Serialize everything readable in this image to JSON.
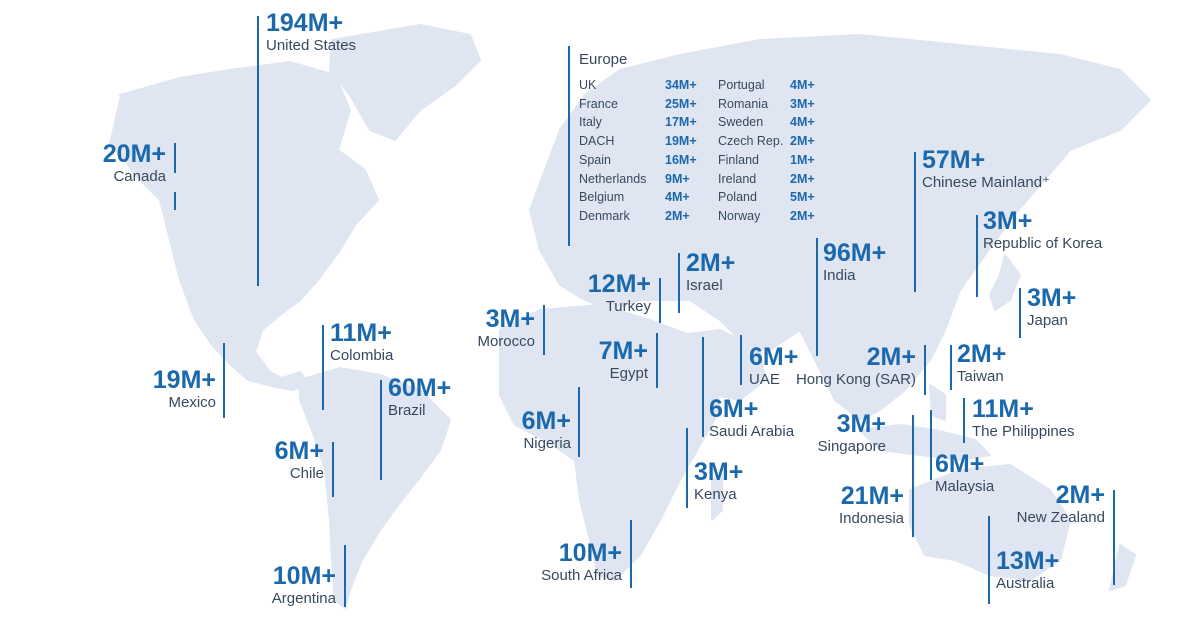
{
  "colors": {
    "accent": "#1b68ad",
    "land": "#dfe6f1",
    "text": "#37495f"
  },
  "europe": {
    "title": "Europe",
    "left_column": [
      {
        "name": "UK",
        "value": "34M+"
      },
      {
        "name": "France",
        "value": "25M+"
      },
      {
        "name": "Italy",
        "value": "17M+"
      },
      {
        "name": "DACH",
        "value": "19M+"
      },
      {
        "name": "Spain",
        "value": "16M+"
      },
      {
        "name": "Netherlands",
        "value": "9M+"
      },
      {
        "name": "Belgium",
        "value": "4M+"
      },
      {
        "name": "Denmark",
        "value": "2M+"
      }
    ],
    "right_column": [
      {
        "name": "Portugal",
        "value": "4M+"
      },
      {
        "name": "Romania",
        "value": "3M+"
      },
      {
        "name": "Sweden",
        "value": "4M+"
      },
      {
        "name": "Czech Rep.",
        "value": "2M+"
      },
      {
        "name": "Finland",
        "value": "1M+"
      },
      {
        "name": "Ireland",
        "value": "2M+"
      },
      {
        "name": "Poland",
        "value": "5M+"
      },
      {
        "name": "Norway",
        "value": "2M+"
      }
    ]
  },
  "regions": {
    "united_states": {
      "value": "194M+",
      "label": "United States"
    },
    "canada": {
      "value": "20M+",
      "label": "Canada"
    },
    "mexico": {
      "value": "19M+",
      "label": "Mexico"
    },
    "colombia": {
      "value": "11M+",
      "label": "Colombia"
    },
    "brazil": {
      "value": "60M+",
      "label": "Brazil"
    },
    "chile": {
      "value": "6M+",
      "label": "Chile"
    },
    "argentina": {
      "value": "10M+",
      "label": "Argentina"
    },
    "morocco": {
      "value": "3M+",
      "label": "Morocco"
    },
    "turkey": {
      "value": "12M+",
      "label": "Turkey"
    },
    "israel": {
      "value": "2M+",
      "label": "Israel"
    },
    "egypt": {
      "value": "7M+",
      "label": "Egypt"
    },
    "nigeria": {
      "value": "6M+",
      "label": "Nigeria"
    },
    "saudi_arabia": {
      "value": "6M+",
      "label": "Saudi Arabia"
    },
    "uae": {
      "value": "6M+",
      "label": "UAE"
    },
    "kenya": {
      "value": "3M+",
      "label": "Kenya"
    },
    "south_africa": {
      "value": "10M+",
      "label": "South Africa"
    },
    "india": {
      "value": "96M+",
      "label": "India"
    },
    "chinese_mainland": {
      "value": "57M+",
      "label": "Chinese Mainland⁺"
    },
    "republic_of_korea": {
      "value": "3M+",
      "label": "Republic of Korea"
    },
    "japan": {
      "value": "3M+",
      "label": "Japan"
    },
    "hong_kong": {
      "value": "2M+",
      "label": "Hong Kong (SAR)"
    },
    "taiwan": {
      "value": "2M+",
      "label": "Taiwan"
    },
    "the_philippines": {
      "value": "11M+",
      "label": "The Philippines"
    },
    "singapore": {
      "value": "3M+",
      "label": "Singapore"
    },
    "malaysia": {
      "value": "6M+",
      "label": "Malaysia"
    },
    "indonesia": {
      "value": "21M+",
      "label": "Indonesia"
    },
    "new_zealand": {
      "value": "2M+",
      "label": "New Zealand"
    },
    "australia": {
      "value": "13M+",
      "label": "Australia"
    }
  }
}
